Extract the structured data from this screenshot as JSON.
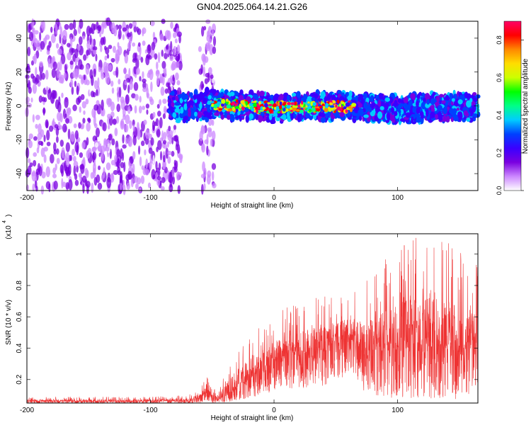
{
  "title": "GN04.2025.064.14.21.G26",
  "chart_data": [
    {
      "type": "heatmap",
      "xlabel": "Height of straight line (km)",
      "ylabel": "Frequency (Hz)",
      "xlim": [
        -200,
        165
      ],
      "ylim": [
        -50,
        50
      ],
      "xticks": [
        -200,
        -100,
        0,
        100
      ],
      "yticks": [
        -40,
        -20,
        0,
        20,
        40
      ],
      "colorbar": {
        "label": "Normalized spectral amplitude",
        "range": [
          0.0,
          0.9
        ],
        "ticks": [
          0.0,
          0.2,
          0.4,
          0.6,
          0.8
        ],
        "colors": [
          "#ffffff",
          "#cc88ff",
          "#7a00e0",
          "#3a00ff",
          "#0040ff",
          "#00ccff",
          "#00ff88",
          "#00ff00",
          "#ccff00",
          "#ffdd00",
          "#ff8800",
          "#ff0000",
          "#ff0066"
        ]
      },
      "regions": [
        {
          "x_range": [
            -200,
            -75
          ],
          "y_range": [
            -50,
            50
          ],
          "amplitude": 0.12,
          "description_level": "low"
        },
        {
          "x_range": [
            -60,
            -48
          ],
          "y_range": [
            -50,
            50
          ],
          "amplitude": 0.12,
          "description_level": "low"
        },
        {
          "x_range": [
            -85,
            165
          ],
          "y_range": [
            -8,
            8
          ],
          "amplitude": 0.25,
          "description_level": "band"
        },
        {
          "x_range": [
            -50,
            65
          ],
          "y_range": [
            -3,
            3
          ],
          "amplitude": 0.45,
          "description_level": "core"
        }
      ],
      "band_center_hz": [
        {
          "x": -80,
          "y": -2
        },
        {
          "x": -50,
          "y": 1
        },
        {
          "x": 0,
          "y": -1
        },
        {
          "x": 50,
          "y": 0
        },
        {
          "x": 100,
          "y": -2
        },
        {
          "x": 160,
          "y": 0
        }
      ]
    },
    {
      "type": "line",
      "xlabel": "Height of straight line (km)",
      "ylabel": "SNR (10 * v/v)",
      "yscale_note": "(x10",
      "yscale_exp": "4",
      "xlim": [
        -200,
        165
      ],
      "ylim": [
        0.05,
        1.13
      ],
      "xticks": [
        -200,
        -100,
        0,
        100
      ],
      "yticks": [
        0.2,
        0.4,
        0.6,
        0.8,
        1
      ],
      "color": "#ee3333",
      "series": [
        {
          "x": [
            -200,
            -150,
            -100,
            -70,
            -60,
            -55,
            -50,
            -45,
            -35,
            -20,
            -10,
            0,
            20,
            40,
            55,
            65,
            75,
            90,
            110,
            130,
            150,
            165
          ],
          "y_base": [
            0.06,
            0.06,
            0.06,
            0.065,
            0.08,
            0.12,
            0.08,
            0.07,
            0.12,
            0.2,
            0.25,
            0.3,
            0.35,
            0.38,
            0.42,
            0.44,
            0.34,
            0.36,
            0.4,
            0.4,
            0.38,
            0.38
          ],
          "y_peak": [
            0.09,
            0.09,
            0.09,
            0.1,
            0.14,
            0.24,
            0.13,
            0.15,
            0.35,
            0.5,
            0.57,
            0.62,
            0.7,
            0.74,
            0.78,
            0.78,
            0.85,
            0.97,
            1.1,
            1.13,
            1.05,
            0.95
          ],
          "y_floor": [
            0.045,
            0.045,
            0.045,
            0.045,
            0.05,
            0.07,
            0.05,
            0.05,
            0.06,
            0.08,
            0.1,
            0.12,
            0.14,
            0.16,
            0.2,
            0.22,
            0.1,
            0.08,
            0.08,
            0.07,
            0.07,
            0.07
          ]
        }
      ]
    }
  ]
}
